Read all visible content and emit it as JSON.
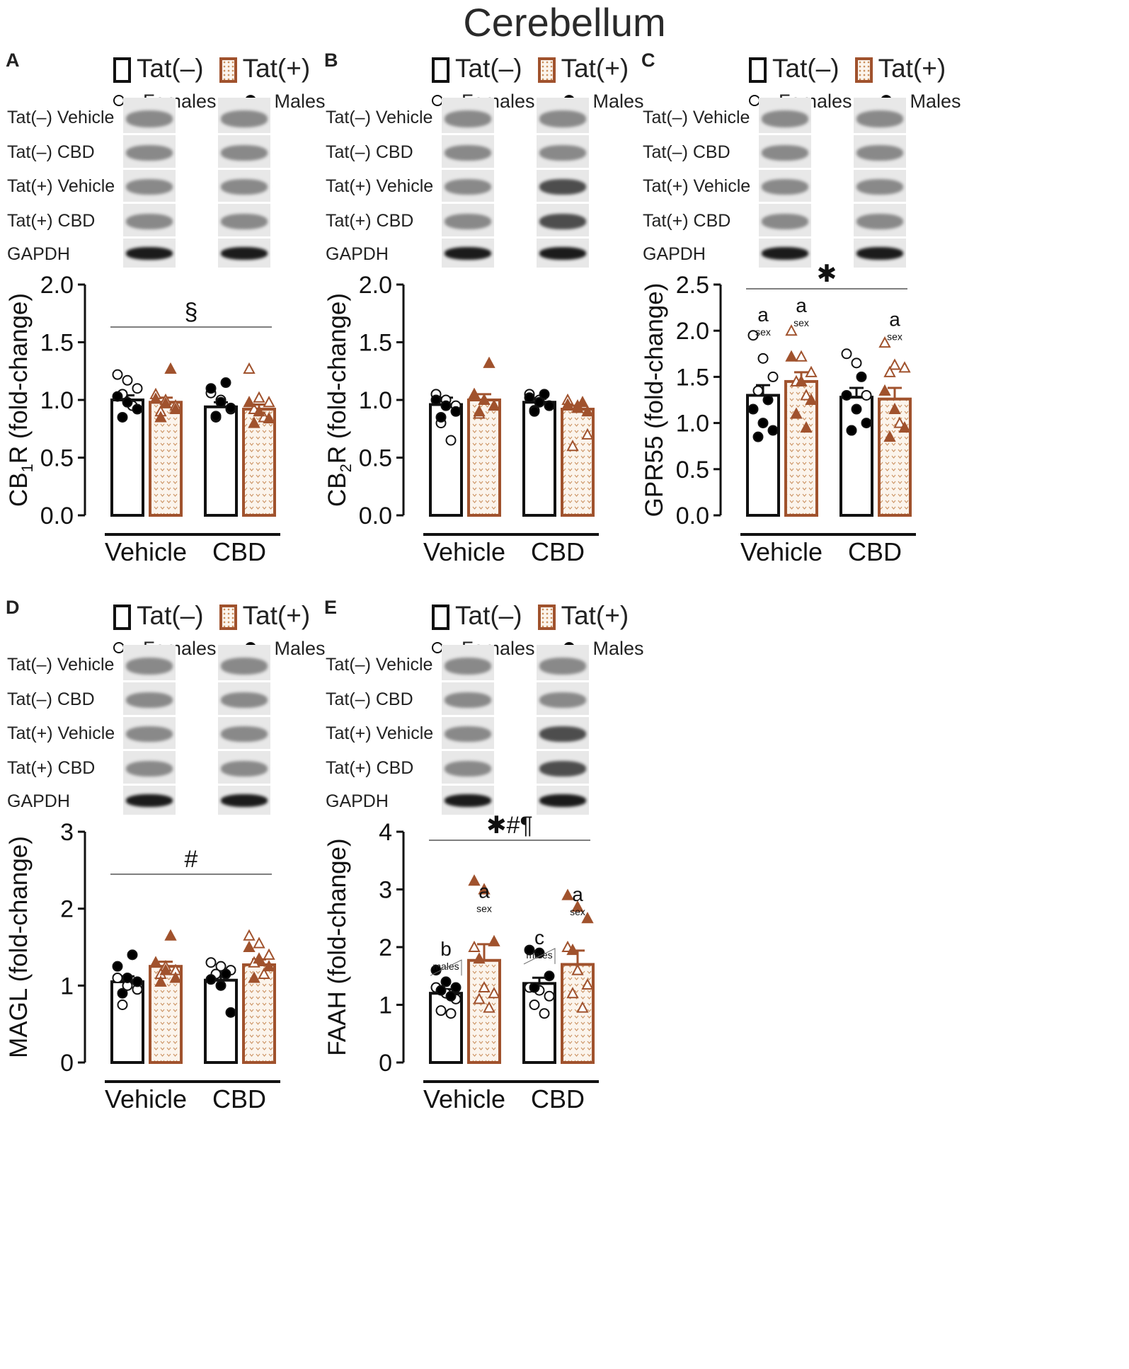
{
  "figure_title": "Cerebellum",
  "legend": {
    "tat_neg": "Tat(–)",
    "tat_pos": "Tat(+)",
    "females": "Females",
    "males": "Males"
  },
  "blot_rows": [
    "Tat(–) Vehicle",
    "Tat(–) CBD",
    "Tat(+) Vehicle",
    "Tat(+) CBD",
    "GAPDH"
  ],
  "colors": {
    "tat_neg_edge": "#111111",
    "tat_pos_edge": "#a0522d",
    "tat_pos_fill": "#fbf4ec"
  },
  "panels": [
    {
      "label": "A",
      "ylabel_main": "CB",
      "ylabel_sub": "1",
      "ylabel_rest": "R (fold-change)",
      "annotation": "§"
    },
    {
      "label": "B",
      "ylabel_main": "CB",
      "ylabel_sub": "2",
      "ylabel_rest": "R (fold-change)",
      "annotation": ""
    },
    {
      "label": "C",
      "ylabel_main": "GPR55 (fold-change)",
      "ylabel_sub": "",
      "ylabel_rest": "",
      "annotation": "✱"
    },
    {
      "label": "D",
      "ylabel_main": "MAGL (fold-change)",
      "ylabel_sub": "",
      "ylabel_rest": "",
      "annotation": "#"
    },
    {
      "label": "E",
      "ylabel_main": "FAAH (fold-change)",
      "ylabel_sub": "",
      "ylabel_rest": "",
      "annotation": "✱#¶"
    }
  ],
  "chart_data": [
    {
      "panel": "A",
      "type": "bar",
      "categories": [
        "Vehicle",
        "CBD"
      ],
      "ylim": [
        0,
        2.0
      ],
      "yticks": [
        "0.0",
        "0.5",
        "1.0",
        "1.5",
        "2.0"
      ],
      "series": [
        {
          "name": "Tat(–)",
          "values": [
            1.0,
            0.94
          ],
          "sem": [
            0.04,
            0.04
          ],
          "females": [
            [
              1.22,
              1.17,
              1.1,
              1.05,
              0.95
            ],
            [
              1.06,
              1.0,
              0.92,
              0.85
            ]
          ],
          "males": [
            [
              1.03,
              0.98,
              0.92,
              0.85
            ],
            [
              1.15,
              1.1,
              0.98,
              0.93,
              0.86
            ]
          ]
        },
        {
          "name": "Tat(+)",
          "values": [
            0.98,
            0.92
          ],
          "sem": [
            0.04,
            0.04
          ],
          "females": [
            [
              1.05,
              1.0,
              0.95,
              0.9
            ],
            [
              1.27,
              1.02,
              0.98,
              0.92,
              0.85
            ]
          ],
          "males": [
            [
              1.27,
              1.01,
              0.97,
              0.92,
              0.85
            ],
            [
              0.98,
              0.9,
              0.84,
              0.8
            ]
          ]
        }
      ],
      "letters": []
    },
    {
      "panel": "B",
      "type": "bar",
      "categories": [
        "Vehicle",
        "CBD"
      ],
      "ylim": [
        0,
        2.0
      ],
      "yticks": [
        "0.0",
        "0.5",
        "1.0",
        "1.5",
        "2.0"
      ],
      "series": [
        {
          "name": "Tat(–)",
          "values": [
            0.96,
            0.98
          ],
          "sem": [
            0.06,
            0.03
          ],
          "females": [
            [
              1.05,
              1.0,
              0.95,
              0.8,
              0.65
            ],
            [
              1.05,
              1.0,
              0.95,
              0.91
            ]
          ],
          "males": [
            [
              1.0,
              0.95,
              0.9,
              0.85
            ],
            [
              1.05,
              1.02,
              0.98,
              0.95,
              0.9
            ]
          ]
        },
        {
          "name": "Tat(+)",
          "values": [
            1.0,
            0.92
          ],
          "sem": [
            0.05,
            0.03
          ],
          "females": [
            [
              1.05,
              1.0,
              0.95,
              0.88
            ],
            [
              1.0,
              0.95,
              0.7,
              0.6
            ]
          ],
          "males": [
            [
              1.32,
              1.05,
              1.0,
              0.95,
              0.9
            ],
            [
              0.98,
              0.96,
              0.93,
              0.9
            ]
          ]
        }
      ],
      "letters": []
    },
    {
      "panel": "C",
      "type": "bar",
      "categories": [
        "Vehicle",
        "CBD"
      ],
      "ylim": [
        0,
        2.5
      ],
      "yticks": [
        "0.0",
        "0.5",
        "1.0",
        "1.5",
        "2.0",
        "2.5"
      ],
      "series": [
        {
          "name": "Tat(–)",
          "values": [
            1.3,
            1.28
          ],
          "sem": [
            0.11,
            0.1
          ],
          "females": [
            [
              1.95,
              1.7,
              1.5,
              1.35
            ],
            [
              1.75,
              1.65,
              1.3,
              0.92
            ]
          ],
          "males": [
            [
              1.25,
              1.15,
              1.0,
              0.92,
              0.85
            ],
            [
              1.5,
              1.3,
              1.15,
              1.0,
              0.92
            ]
          ]
        },
        {
          "name": "Tat(+)",
          "values": [
            1.45,
            1.26
          ],
          "sem": [
            0.1,
            0.12
          ],
          "females": [
            [
              2.0,
              1.72,
              1.55,
              1.45,
              1.3
            ],
            [
              1.87,
              1.63,
              1.6,
              1.55,
              1.0
            ]
          ],
          "males": [
            [
              1.72,
              1.45,
              1.25,
              1.1,
              0.95
            ],
            [
              1.35,
              1.15,
              0.95,
              0.85
            ]
          ]
        }
      ],
      "letters": [
        {
          "bar": 0,
          "top": "a",
          "bottom": "sex",
          "value": 2.1
        },
        {
          "bar": 1,
          "top": "a",
          "bottom": "sex",
          "value": 2.2
        },
        {
          "bar": 3,
          "top": "a",
          "bottom": "sex",
          "value": 2.05
        }
      ]
    },
    {
      "panel": "D",
      "type": "bar",
      "categories": [
        "Vehicle",
        "CBD"
      ],
      "ylim": [
        0,
        3
      ],
      "yticks": [
        "0",
        "1",
        "2",
        "3"
      ],
      "series": [
        {
          "name": "Tat(–)",
          "values": [
            1.05,
            1.07
          ],
          "sem": [
            0.07,
            0.07
          ],
          "females": [
            [
              1.1,
              1.0,
              0.95,
              0.75
            ],
            [
              1.3,
              1.25,
              1.2,
              1.15
            ]
          ],
          "males": [
            [
              1.4,
              1.25,
              1.1,
              1.05,
              0.9
            ],
            [
              1.15,
              1.08,
              1.0,
              0.65
            ]
          ]
        },
        {
          "name": "Tat(+)",
          "values": [
            1.25,
            1.27
          ],
          "sem": [
            0.06,
            0.07
          ],
          "females": [
            [
              1.3,
              1.25,
              1.2,
              1.15
            ],
            [
              1.65,
              1.55,
              1.4,
              1.3,
              1.15
            ]
          ],
          "males": [
            [
              1.65,
              1.3,
              1.2,
              1.1,
              1.05
            ],
            [
              1.5,
              1.35,
              1.25,
              1.1
            ]
          ]
        }
      ],
      "letters": []
    },
    {
      "panel": "E",
      "type": "bar",
      "categories": [
        "Vehicle",
        "CBD"
      ],
      "ylim": [
        0,
        4
      ],
      "yticks": [
        "0",
        "1",
        "2",
        "3",
        "4"
      ],
      "series": [
        {
          "name": "Tat(–)",
          "values": [
            1.2,
            1.37
          ],
          "sem": [
            0.07,
            0.1
          ],
          "females": [
            [
              1.3,
              1.2,
              1.1,
              0.9,
              0.85
            ],
            [
              1.3,
              1.25,
              1.15,
              1.0,
              0.85
            ]
          ],
          "males": [
            [
              1.6,
              1.4,
              1.3,
              1.25,
              1.15
            ],
            [
              1.95,
              1.9,
              1.5,
              1.3
            ]
          ]
        },
        {
          "name": "Tat(+)",
          "values": [
            1.77,
            1.7
          ],
          "sem": [
            0.28,
            0.24
          ],
          "females": [
            [
              2.0,
              1.3,
              1.2,
              1.1,
              0.95
            ],
            [
              2.0,
              1.6,
              1.35,
              1.2,
              0.95
            ]
          ],
          "males": [
            [
              3.15,
              3.0,
              2.1,
              1.8
            ],
            [
              2.9,
              2.7,
              2.5,
              1.95
            ]
          ]
        }
      ],
      "letters": [
        {
          "bar": 0,
          "top": "b",
          "bottom": "males",
          "value": 1.85,
          "bracket": true
        },
        {
          "bar": 1,
          "top": "a",
          "bottom": "sex",
          "value": 2.85
        },
        {
          "bar": 2,
          "top": "c",
          "bottom": "males",
          "value": 2.05,
          "bracket": true
        },
        {
          "bar": 3,
          "top": "a",
          "bottom": "sex",
          "value": 2.8
        }
      ]
    }
  ]
}
